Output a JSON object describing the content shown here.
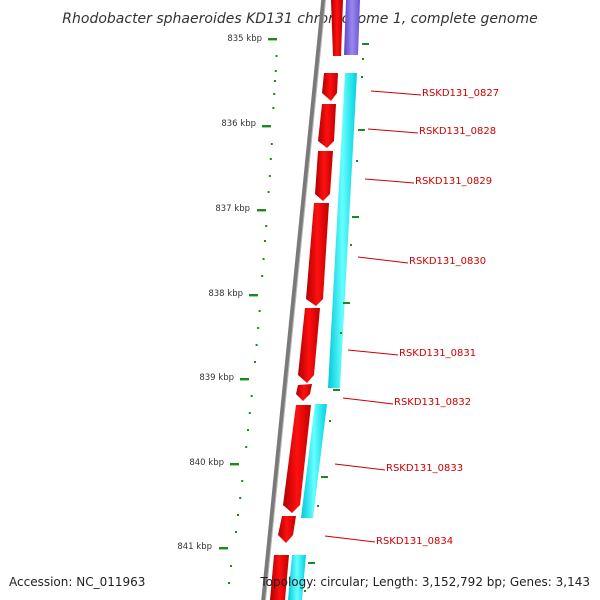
{
  "map": {
    "title": "Rhodobacter sphaeroides KD131 chromosome 1, complete genome",
    "footer": {
      "accession": "Accession: NC_011963",
      "topology": "Topology: circular; Length: 3,152,792 bp; Genes: 3,143"
    },
    "ticks": [
      {
        "label": "835 kbp"
      },
      {
        "label": "836 kbp"
      },
      {
        "label": "837 kbp"
      },
      {
        "label": "838 kbp"
      },
      {
        "label": "839 kbp"
      },
      {
        "label": "840 kbp"
      },
      {
        "label": "841 kbp"
      }
    ],
    "genes": [
      {
        "label": "RSKD131_0827"
      },
      {
        "label": "RSKD131_0828"
      },
      {
        "label": "RSKD131_0829"
      },
      {
        "label": "RSKD131_0830"
      },
      {
        "label": "RSKD131_0831"
      },
      {
        "label": "RSKD131_0832"
      },
      {
        "label": "RSKD131_0833"
      },
      {
        "label": "RSKD131_0834"
      }
    ],
    "colors": {
      "backbone": "#7a7a7a",
      "gene_forward": "#ee0000",
      "cds_band": "#00eeee",
      "other_feature": "#7f66dd",
      "ticks": "#1a8a1a",
      "label_text": "#cc0000"
    }
  }
}
